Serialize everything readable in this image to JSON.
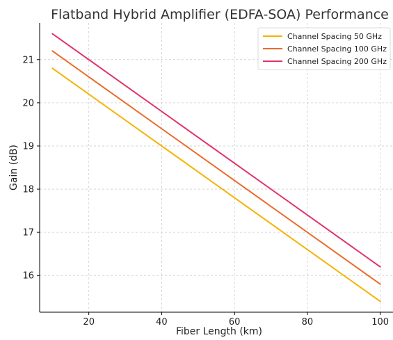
{
  "chart_data": {
    "type": "line",
    "title": "Flatband Hybrid Amplifier (EDFA-SOA) Performance",
    "xlabel": "Fiber Length (km)",
    "ylabel": "Gain (dB)",
    "xlim": [
      6.5,
      103.5
    ],
    "ylim": [
      15.15,
      21.85
    ],
    "xticks": [
      20,
      40,
      60,
      80,
      100
    ],
    "yticks": [
      16,
      17,
      18,
      19,
      20,
      21
    ],
    "grid": true,
    "legend_position": "top-right",
    "x": [
      10,
      100
    ],
    "series": [
      {
        "name": "Channel Spacing 50 GHz",
        "color": "#f5b301",
        "values": [
          20.8,
          15.4
        ]
      },
      {
        "name": "Channel Spacing 100 GHz",
        "color": "#ea6b2b",
        "values": [
          21.2,
          15.8
        ]
      },
      {
        "name": "Channel Spacing 200 GHz",
        "color": "#e0336a",
        "values": [
          21.6,
          16.2
        ]
      }
    ]
  }
}
